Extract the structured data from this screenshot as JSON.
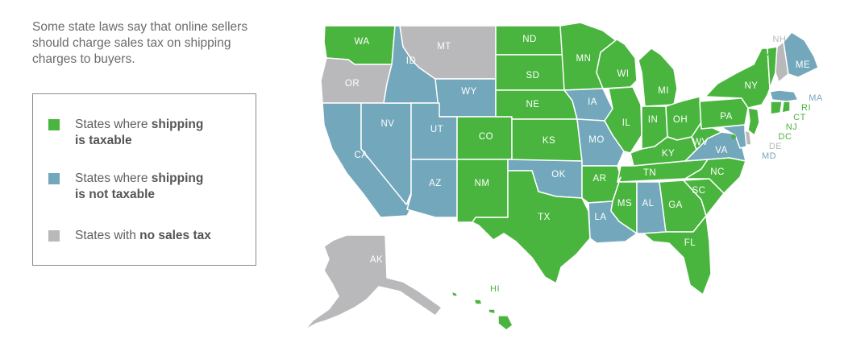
{
  "intro": "Some state laws say that online sellers should charge sales tax on shipping charges to buyers.",
  "colors": {
    "taxable": "#49b53e",
    "not_taxable": "#73a7bb",
    "no_tax": "#b9b9bb",
    "text": "#6b6b6b"
  },
  "legend": [
    {
      "category": "taxable",
      "prefix": "States where ",
      "bold": "shipping",
      "rest": "is taxable"
    },
    {
      "category": "not_taxable",
      "prefix": "States where ",
      "bold": "shipping",
      "rest": "is not taxable"
    },
    {
      "category": "no_tax",
      "prefix": "States with ",
      "bold": "no sales tax",
      "rest": ""
    }
  ],
  "states": {
    "WA": "taxable",
    "OR": "no_tax",
    "CA": "not_taxable",
    "NV": "not_taxable",
    "ID": "not_taxable",
    "MT": "no_tax",
    "WY": "not_taxable",
    "UT": "not_taxable",
    "AZ": "not_taxable",
    "CO": "taxable",
    "NM": "taxable",
    "ND": "taxable",
    "SD": "taxable",
    "NE": "taxable",
    "KS": "taxable",
    "OK": "not_taxable",
    "TX": "taxable",
    "MN": "taxable",
    "IA": "not_taxable",
    "MO": "not_taxable",
    "AR": "taxable",
    "LA": "not_taxable",
    "WI": "taxable",
    "IL": "taxable",
    "MI": "taxable",
    "IN": "taxable",
    "OH": "taxable",
    "KY": "taxable",
    "TN": "taxable",
    "MS": "taxable",
    "AL": "not_taxable",
    "GA": "taxable",
    "FL": "taxable",
    "SC": "taxable",
    "NC": "taxable",
    "VA": "not_taxable",
    "WV": "taxable",
    "PA": "taxable",
    "NY": "taxable",
    "VT": "taxable",
    "NH": "no_tax",
    "ME": "not_taxable",
    "MA": "not_taxable",
    "RI": "taxable",
    "CT": "taxable",
    "NJ": "taxable",
    "DE": "no_tax",
    "MD": "not_taxable",
    "DC": "taxable",
    "AK": "no_tax",
    "HI": "taxable"
  }
}
